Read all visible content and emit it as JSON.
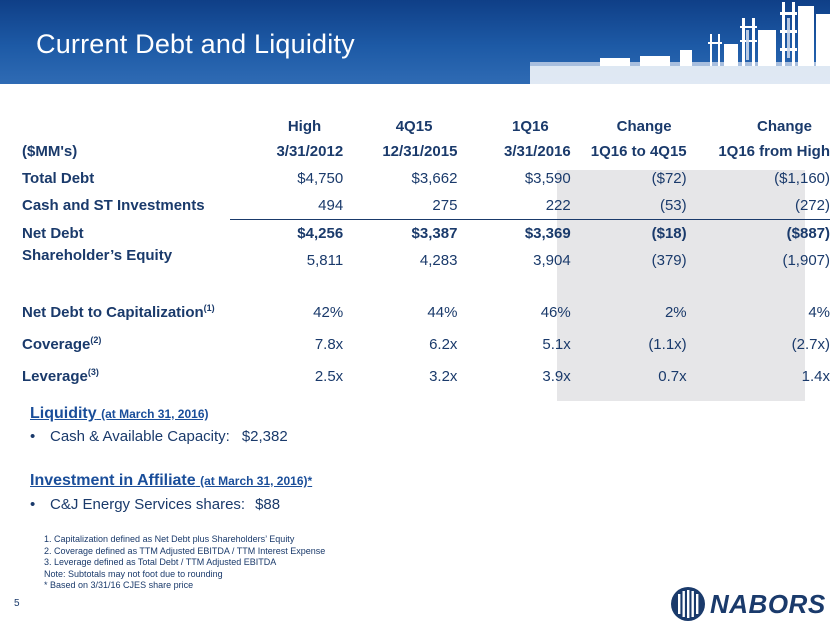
{
  "slide": {
    "title": "Current Debt and Liquidity",
    "page_number": "5"
  },
  "table": {
    "header_row1": [
      "",
      "High",
      "4Q15",
      "1Q16",
      "Change",
      "Change"
    ],
    "header_row2": [
      "($MM's)",
      "3/31/2012",
      "12/31/2015",
      "3/31/2016",
      "1Q16 to 4Q15",
      "1Q16 from High"
    ],
    "rows": [
      {
        "label": "Total Debt",
        "values": [
          "$4,750",
          "$3,662",
          "$3,590",
          "($72)",
          "($1,160)"
        ]
      },
      {
        "label": "Cash and ST Investments",
        "values": [
          "494",
          "275",
          "222",
          "(53)",
          "(272)"
        ]
      },
      {
        "label": "Net Debt",
        "values": [
          "$4,256",
          "$3,387",
          "$3,369",
          "($18)",
          "($887)"
        ]
      },
      {
        "label": "Shareholder’s Equity",
        "values": [
          "5,811",
          "4,283",
          "3,904",
          "(379)",
          "(1,907)"
        ]
      },
      {
        "label": "Net Debt to Capitalization",
        "sup": "(1)",
        "values": [
          "42%",
          "44%",
          "46%",
          "2%",
          "4%"
        ]
      },
      {
        "label": "Coverage",
        "sup": "(2)",
        "values": [
          "7.8x",
          "6.2x",
          "5.1x",
          "(1.1x)",
          "(2.7x)"
        ]
      },
      {
        "label": "Leverage",
        "sup": "(3)",
        "values": [
          "2.5x",
          "3.2x",
          "3.9x",
          "0.7x",
          "1.4x"
        ]
      }
    ]
  },
  "liquidity": {
    "title": "Liquidity",
    "title_note": "(at March 31, 2016)",
    "bullet_label": "Cash & Available Capacity:",
    "bullet_value": "$2,382"
  },
  "investment": {
    "title": "Investment in Affiliate",
    "title_note": "(at March 31, 2016)*",
    "bullet_label": "C&J Energy Services shares:",
    "bullet_value": "$88"
  },
  "footnotes": [
    "1. Capitalization defined as Net Debt plus Shareholders’ Equity",
    "2. Coverage defined as TTM Adjusted EBITDA / TTM Interest Expense",
    "3. Leverage defined as Total Debt / TTM Adjusted EBITDA",
    "Note:  Subtotals may not foot due to rounding",
    "* Based on 3/31/16 CJES share price"
  ],
  "logo": {
    "text": "NABORS"
  },
  "colors": {
    "header_dark": "#0f3f87",
    "header_light": "#2f6bb4",
    "text": "#1a3a6b",
    "accent": "#1a4e9a",
    "shade": "#e6e6e8"
  },
  "icons": {
    "rigs": "oil-rig-skyline-icon",
    "logo_mark": "nabors-logo-mark-icon"
  }
}
